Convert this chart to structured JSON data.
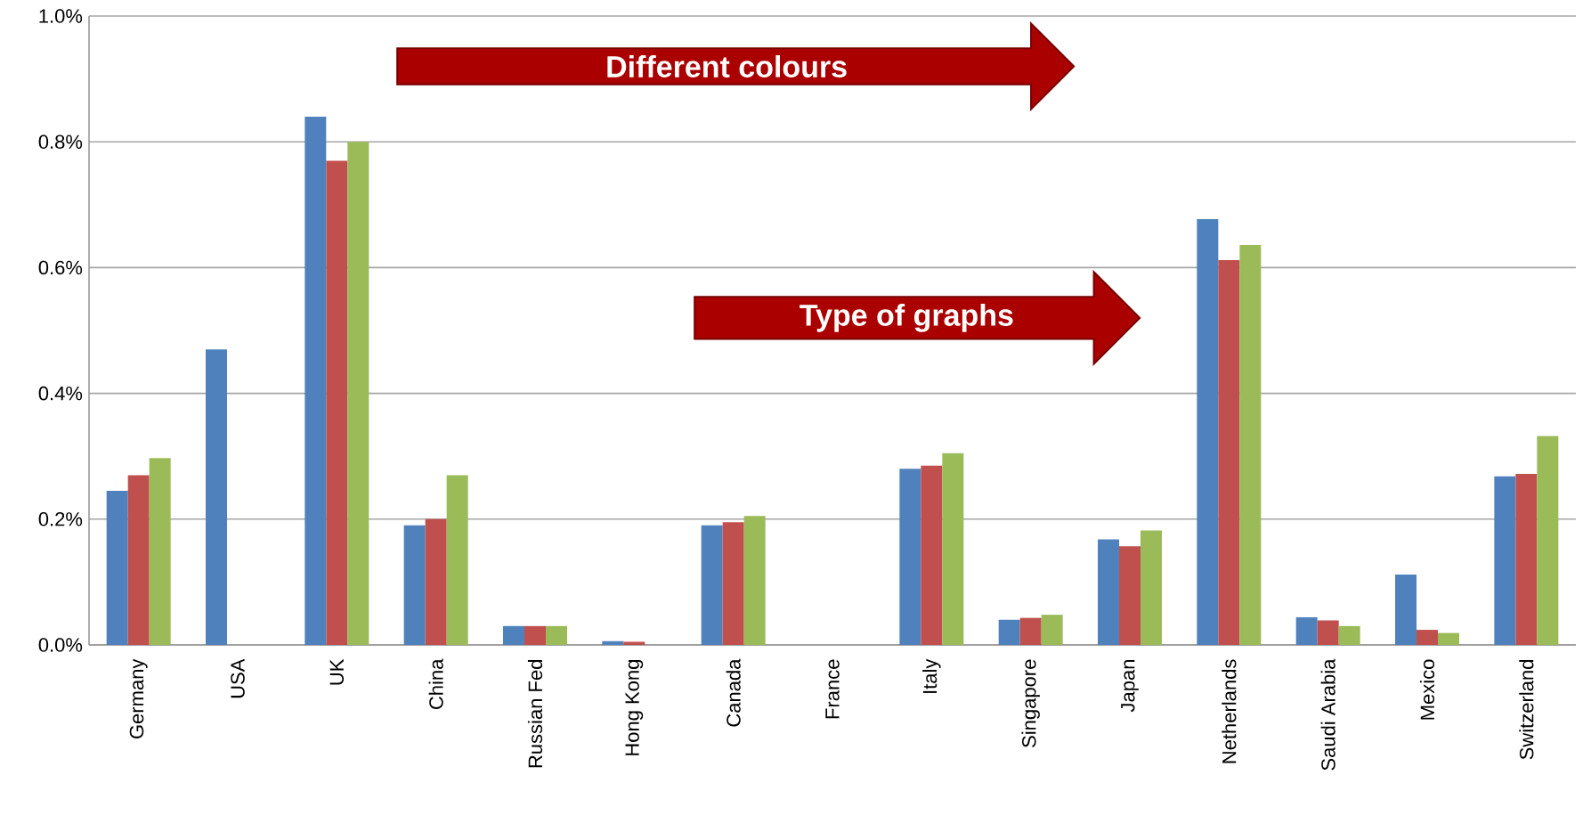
{
  "chart_data": {
    "type": "bar",
    "categories": [
      "Germany",
      "USA",
      "UK",
      "China",
      "Russian Fed",
      "Hong Kong",
      "Canada",
      "France",
      "Italy",
      "Singapore",
      "Japan",
      "Netherlands",
      "Saudi Arabia",
      "Mexico",
      "Switzerland"
    ],
    "series": [
      {
        "color": "#4f81bd",
        "values": [
          0.245,
          0.47,
          0.84,
          0.19,
          0.03,
          0.006,
          0.19,
          null,
          0.28,
          0.04,
          0.168,
          0.677,
          0.044,
          0.112,
          0.268
        ]
      },
      {
        "color": "#c0504d",
        "values": [
          0.27,
          null,
          0.77,
          0.2,
          0.03,
          0.005,
          0.195,
          null,
          0.285,
          0.043,
          0.157,
          0.612,
          0.039,
          0.024,
          0.272
        ]
      },
      {
        "color": "#9bbb59",
        "values": [
          0.297,
          null,
          0.8,
          0.27,
          0.03,
          0,
          0.205,
          null,
          0.305,
          0.048,
          0.182,
          0.636,
          0.03,
          0.019,
          0.332
        ]
      }
    ],
    "ylim": [
      0,
      1.0
    ],
    "yticks": [
      {
        "value": 0,
        "label": "0.0%"
      },
      {
        "value": 0.2,
        "label": "0.2%"
      },
      {
        "value": 0.4,
        "label": "0.4%"
      },
      {
        "value": 0.6,
        "label": "0.6%"
      },
      {
        "value": 0.8,
        "label": "0.8%"
      },
      {
        "value": 1.0,
        "label": "1.0%"
      }
    ],
    "grid": "y",
    "annotations": [
      "Different colours",
      "Type of graphs"
    ]
  }
}
